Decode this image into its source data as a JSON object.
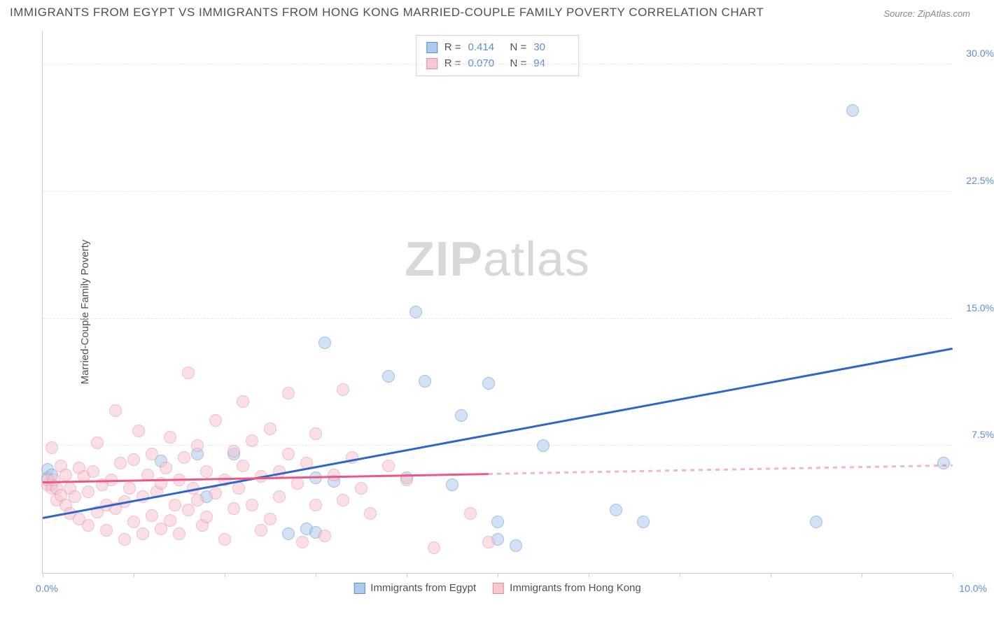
{
  "title": "IMMIGRANTS FROM EGYPT VS IMMIGRANTS FROM HONG KONG MARRIED-COUPLE FAMILY POVERTY CORRELATION CHART",
  "source": "Source: ZipAtlas.com",
  "watermark_bold": "ZIP",
  "watermark_light": "atlas",
  "ylabel": "Married-Couple Family Poverty",
  "chart": {
    "type": "scatter",
    "background_color": "#ffffff",
    "grid_color": "#e8e8e8",
    "axis_color": "#cccccc",
    "xlim": [
      0.0,
      10.0
    ],
    "ylim": [
      0.0,
      32.0
    ],
    "xtick_positions": [
      0,
      1,
      2,
      3,
      4,
      5,
      6,
      7,
      8,
      9,
      10
    ],
    "xaxis_label_left": "0.0%",
    "xaxis_label_right": "10.0%",
    "ytick_positions": [
      7.5,
      15.0,
      22.5,
      30.0
    ],
    "ytick_labels": [
      "7.5%",
      "15.0%",
      "22.5%",
      "30.0%"
    ],
    "tick_label_color": "#5b8dd6",
    "axis_label_color": "#505050",
    "marker_radius": 9,
    "marker_opacity": 0.55,
    "correlation_legend": {
      "rows": [
        {
          "swatch_fill": "#aecbeb",
          "swatch_border": "#5b8dd6",
          "r_label": "R =",
          "r_value": "0.414",
          "n_label": "N =",
          "n_value": "30"
        },
        {
          "swatch_fill": "#f7c6d0",
          "swatch_border": "#e68aa0",
          "r_label": "R =",
          "r_value": "0.070",
          "n_label": "N =",
          "n_value": "94"
        }
      ]
    },
    "series_legend": [
      {
        "swatch_fill": "#aecbeb",
        "swatch_border": "#5b8dd6",
        "label": "Immigrants from Egypt"
      },
      {
        "swatch_fill": "#f7c6d0",
        "swatch_border": "#e68aa0",
        "label": "Immigrants from Hong Kong"
      }
    ],
    "series": [
      {
        "name": "egypt",
        "fill": "#aecbeb",
        "stroke": "#5b8dd6",
        "trend": {
          "x1": 0.0,
          "y1": 3.2,
          "x2": 10.0,
          "y2": 13.2,
          "color": "#2e67c5",
          "width": 2.5,
          "solid_until_x": 10.0
        },
        "points": [
          [
            0.05,
            5.6
          ],
          [
            0.05,
            6.1
          ],
          [
            0.1,
            5.8
          ],
          [
            0.1,
            5.2
          ],
          [
            1.3,
            6.6
          ],
          [
            1.7,
            7.0
          ],
          [
            1.8,
            4.5
          ],
          [
            2.1,
            7.0
          ],
          [
            2.7,
            2.3
          ],
          [
            2.9,
            2.6
          ],
          [
            3.0,
            5.6
          ],
          [
            3.0,
            2.4
          ],
          [
            3.1,
            13.6
          ],
          [
            3.2,
            5.4
          ],
          [
            3.8,
            11.6
          ],
          [
            4.0,
            5.6
          ],
          [
            4.1,
            15.4
          ],
          [
            4.2,
            11.3
          ],
          [
            4.5,
            5.2
          ],
          [
            4.6,
            9.3
          ],
          [
            4.9,
            11.2
          ],
          [
            5.0,
            2.0
          ],
          [
            5.0,
            3.0
          ],
          [
            5.2,
            1.6
          ],
          [
            5.5,
            7.5
          ],
          [
            6.3,
            3.7
          ],
          [
            6.6,
            3.0
          ],
          [
            8.5,
            3.0
          ],
          [
            8.9,
            27.3
          ],
          [
            9.9,
            6.5
          ]
        ]
      },
      {
        "name": "hongkong",
        "fill": "#f7c6d0",
        "stroke": "#e68aa0",
        "trend": {
          "x1": 0.0,
          "y1": 5.3,
          "x2": 10.0,
          "y2": 6.3,
          "color": "#e85a85",
          "width": 2.5,
          "solid_until_x": 4.9
        },
        "points": [
          [
            0.05,
            5.2
          ],
          [
            0.05,
            5.5
          ],
          [
            0.1,
            7.4
          ],
          [
            0.1,
            5.0
          ],
          [
            0.12,
            5.5
          ],
          [
            0.15,
            4.3
          ],
          [
            0.15,
            5.0
          ],
          [
            0.2,
            6.3
          ],
          [
            0.2,
            4.6
          ],
          [
            0.25,
            5.8
          ],
          [
            0.25,
            4.0
          ],
          [
            0.3,
            3.5
          ],
          [
            0.3,
            5.0
          ],
          [
            0.35,
            4.5
          ],
          [
            0.4,
            6.2
          ],
          [
            0.4,
            3.2
          ],
          [
            0.45,
            5.7
          ],
          [
            0.5,
            4.8
          ],
          [
            0.5,
            2.8
          ],
          [
            0.55,
            6.0
          ],
          [
            0.6,
            3.6
          ],
          [
            0.6,
            7.7
          ],
          [
            0.65,
            5.2
          ],
          [
            0.7,
            4.0
          ],
          [
            0.7,
            2.5
          ],
          [
            0.75,
            5.5
          ],
          [
            0.8,
            9.6
          ],
          [
            0.8,
            3.8
          ],
          [
            0.85,
            6.5
          ],
          [
            0.9,
            4.2
          ],
          [
            0.9,
            2.0
          ],
          [
            0.95,
            5.0
          ],
          [
            1.0,
            6.7
          ],
          [
            1.0,
            3.0
          ],
          [
            1.05,
            8.4
          ],
          [
            1.1,
            4.5
          ],
          [
            1.1,
            2.3
          ],
          [
            1.15,
            5.8
          ],
          [
            1.2,
            3.4
          ],
          [
            1.2,
            7.0
          ],
          [
            1.25,
            4.8
          ],
          [
            1.3,
            2.6
          ],
          [
            1.3,
            5.3
          ],
          [
            1.35,
            6.2
          ],
          [
            1.4,
            3.1
          ],
          [
            1.4,
            8.0
          ],
          [
            1.45,
            4.0
          ],
          [
            1.5,
            5.5
          ],
          [
            1.5,
            2.3
          ],
          [
            1.55,
            6.8
          ],
          [
            1.6,
            3.7
          ],
          [
            1.6,
            11.8
          ],
          [
            1.65,
            5.0
          ],
          [
            1.7,
            4.3
          ],
          [
            1.7,
            7.5
          ],
          [
            1.75,
            2.8
          ],
          [
            1.8,
            6.0
          ],
          [
            1.8,
            3.3
          ],
          [
            1.9,
            9.0
          ],
          [
            1.9,
            4.7
          ],
          [
            2.0,
            5.5
          ],
          [
            2.0,
            2.0
          ],
          [
            2.1,
            7.2
          ],
          [
            2.1,
            3.8
          ],
          [
            2.15,
            5.0
          ],
          [
            2.2,
            10.1
          ],
          [
            2.2,
            6.3
          ],
          [
            2.3,
            4.0
          ],
          [
            2.3,
            7.8
          ],
          [
            2.4,
            2.5
          ],
          [
            2.4,
            5.7
          ],
          [
            2.5,
            8.5
          ],
          [
            2.5,
            3.2
          ],
          [
            2.6,
            6.0
          ],
          [
            2.6,
            4.5
          ],
          [
            2.7,
            10.6
          ],
          [
            2.7,
            7.0
          ],
          [
            2.8,
            5.3
          ],
          [
            2.85,
            1.8
          ],
          [
            2.9,
            6.5
          ],
          [
            3.0,
            4.0
          ],
          [
            3.0,
            8.2
          ],
          [
            3.1,
            2.2
          ],
          [
            3.2,
            5.8
          ],
          [
            3.3,
            10.8
          ],
          [
            3.3,
            4.3
          ],
          [
            3.4,
            6.8
          ],
          [
            3.5,
            5.0
          ],
          [
            3.6,
            3.5
          ],
          [
            3.8,
            6.3
          ],
          [
            4.0,
            5.5
          ],
          [
            4.3,
            1.5
          ],
          [
            4.7,
            3.5
          ],
          [
            4.9,
            1.8
          ]
        ]
      }
    ]
  }
}
